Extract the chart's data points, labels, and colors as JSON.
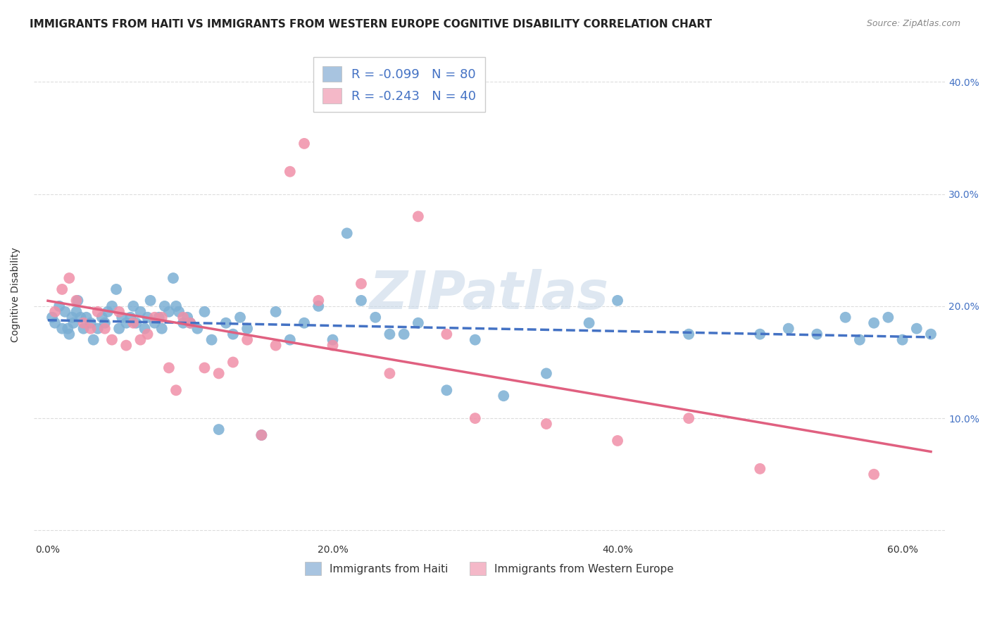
{
  "title": "IMMIGRANTS FROM HAITI VS IMMIGRANTS FROM WESTERN EUROPE COGNITIVE DISABILITY CORRELATION CHART",
  "source": "Source: ZipAtlas.com",
  "ylabel": "Cognitive Disability",
  "watermark": "ZIPatlas",
  "series": [
    {
      "name": "Immigrants from Haiti",
      "R": -0.099,
      "N": 80,
      "legend_color": "#a8c4e0",
      "line_color": "#4472c4",
      "marker_color": "#7bafd4",
      "line_style": "--",
      "x": [
        0.3,
        0.5,
        0.8,
        1.0,
        1.2,
        1.4,
        1.5,
        1.7,
        1.8,
        2.0,
        2.1,
        2.3,
        2.5,
        2.7,
        3.0,
        3.2,
        3.5,
        3.8,
        4.0,
        4.2,
        4.5,
        4.8,
        5.0,
        5.2,
        5.5,
        5.8,
        6.0,
        6.2,
        6.5,
        6.8,
        7.0,
        7.2,
        7.5,
        7.8,
        8.0,
        8.2,
        8.5,
        8.8,
        9.0,
        9.2,
        9.5,
        9.8,
        10.0,
        10.5,
        11.0,
        11.5,
        12.0,
        12.5,
        13.0,
        13.5,
        14.0,
        15.0,
        16.0,
        17.0,
        18.0,
        19.0,
        20.0,
        21.0,
        22.0,
        23.0,
        24.0,
        25.0,
        26.0,
        28.0,
        30.0,
        32.0,
        35.0,
        38.0,
        40.0,
        45.0,
        50.0,
        52.0,
        54.0,
        56.0,
        57.0,
        58.0,
        59.0,
        60.0,
        61.0,
        62.0
      ],
      "y": [
        19.0,
        18.5,
        20.0,
        18.0,
        19.5,
        18.0,
        17.5,
        19.0,
        18.5,
        19.5,
        20.5,
        19.0,
        18.0,
        19.0,
        18.5,
        17.0,
        18.0,
        19.0,
        18.5,
        19.5,
        20.0,
        21.5,
        18.0,
        19.0,
        18.5,
        19.0,
        20.0,
        18.5,
        19.5,
        18.0,
        19.0,
        20.5,
        18.5,
        19.0,
        18.0,
        20.0,
        19.5,
        22.5,
        20.0,
        19.5,
        18.5,
        19.0,
        18.5,
        18.0,
        19.5,
        17.0,
        9.0,
        18.5,
        17.5,
        19.0,
        18.0,
        8.5,
        19.5,
        17.0,
        18.5,
        20.0,
        17.0,
        26.5,
        20.5,
        19.0,
        17.5,
        17.5,
        18.5,
        12.5,
        17.0,
        12.0,
        14.0,
        18.5,
        20.5,
        17.5,
        17.5,
        18.0,
        17.5,
        19.0,
        17.0,
        18.5,
        19.0,
        17.0,
        18.0,
        17.5
      ]
    },
    {
      "name": "Immigrants from Western Europe",
      "R": -0.243,
      "N": 40,
      "legend_color": "#f4b8c8",
      "line_color": "#e06080",
      "marker_color": "#f090a8",
      "line_style": "-",
      "x": [
        0.5,
        1.0,
        1.5,
        2.0,
        2.5,
        3.0,
        3.5,
        4.0,
        4.5,
        5.0,
        5.5,
        6.0,
        6.5,
        7.0,
        7.5,
        8.0,
        8.5,
        9.0,
        9.5,
        10.0,
        11.0,
        12.0,
        13.0,
        14.0,
        15.0,
        16.0,
        17.0,
        18.0,
        19.0,
        20.0,
        22.0,
        24.0,
        26.0,
        28.0,
        30.0,
        35.0,
        40.0,
        45.0,
        50.0,
        58.0
      ],
      "y": [
        19.5,
        21.5,
        22.5,
        20.5,
        18.5,
        18.0,
        19.5,
        18.0,
        17.0,
        19.5,
        16.5,
        18.5,
        17.0,
        17.5,
        19.0,
        19.0,
        14.5,
        12.5,
        19.0,
        18.5,
        14.5,
        14.0,
        15.0,
        17.0,
        8.5,
        16.5,
        32.0,
        34.5,
        20.5,
        16.5,
        22.0,
        14.0,
        28.0,
        17.5,
        10.0,
        9.5,
        8.0,
        10.0,
        5.5,
        5.0
      ]
    }
  ],
  "xlim": [
    -1,
    63
  ],
  "ylim": [
    -1,
    43
  ],
  "yticks": [
    0,
    10,
    20,
    30,
    40
  ],
  "xticks": [
    0,
    20,
    40,
    60
  ],
  "xtick_labels": [
    "0.0%",
    "20.0%",
    "40.0%",
    "60.0%"
  ],
  "right_ytick_labels": [
    "",
    "10.0%",
    "20.0%",
    "30.0%",
    "40.0%"
  ],
  "background_color": "#ffffff",
  "grid_color": "#dddddd",
  "title_fontsize": 11,
  "axis_label_fontsize": 10,
  "tick_fontsize": 10,
  "legend_text_color": "#4472c4",
  "watermark_color": "#c8d8e8",
  "source_color": "#888888"
}
